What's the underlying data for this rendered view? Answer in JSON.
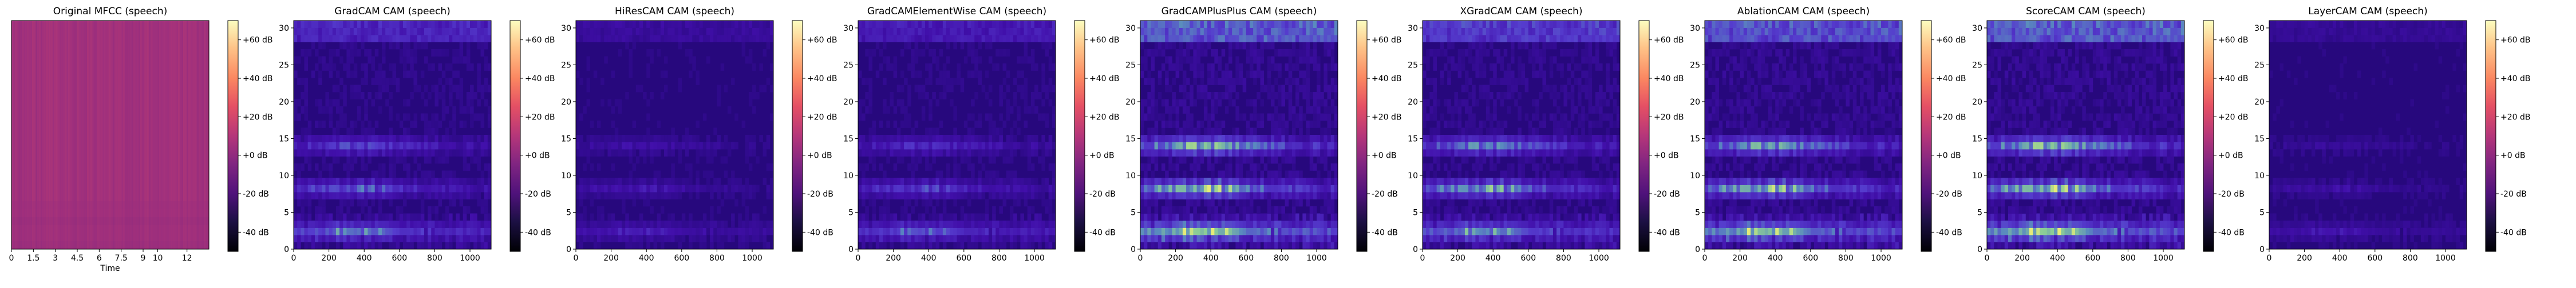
{
  "figure": {
    "background": "#ffffff"
  },
  "colorbar": {
    "ticks": [
      "+60 dB",
      "+40 dB",
      "+20 dB",
      "+0 dB",
      "-20 dB",
      "-40 dB"
    ],
    "range_db": [
      -50,
      70
    ],
    "colormap": "magma"
  },
  "chart_data": [
    {
      "type": "heatmap",
      "title": "Original MFCC (speech)",
      "xlabel": "Time",
      "ylabel": "",
      "x_ticks": [
        "0",
        "1.5",
        "3",
        "4.5",
        "6",
        "7.5",
        "9",
        "10",
        "12"
      ],
      "xlim": [
        0,
        13.5
      ],
      "y_ticks": [],
      "style": "mfcc",
      "band_rows": [],
      "band_strength": []
    },
    {
      "type": "heatmap",
      "title": "GradCAM CAM (speech)",
      "xlabel": "",
      "ylabel": "",
      "x_ticks": [
        "0",
        "200",
        "400",
        "600",
        "800",
        "1000"
      ],
      "xlim": [
        0,
        1120
      ],
      "y_ticks": [
        "0",
        "5",
        "10",
        "15",
        "20",
        "25",
        "30"
      ],
      "ylim": [
        0,
        31
      ],
      "style": "cam",
      "band_rows": [
        2,
        8,
        14
      ],
      "band_strength": [
        0.55,
        0.5,
        0.4
      ]
    },
    {
      "type": "heatmap",
      "title": "HiResCAM CAM (speech)",
      "xlabel": "",
      "ylabel": "",
      "x_ticks": [
        "0",
        "200",
        "400",
        "600",
        "800",
        "1000"
      ],
      "xlim": [
        0,
        1120
      ],
      "y_ticks": [
        "0",
        "5",
        "10",
        "15",
        "20",
        "25",
        "30"
      ],
      "ylim": [
        0,
        31
      ],
      "style": "cam",
      "band_rows": [
        2,
        8,
        14
      ],
      "band_strength": [
        0.22,
        0.2,
        0.15
      ]
    },
    {
      "type": "heatmap",
      "title": "GradCAMElementWise CAM (speech)",
      "xlabel": "",
      "ylabel": "",
      "x_ticks": [
        "0",
        "200",
        "400",
        "600",
        "800",
        "1000"
      ],
      "xlim": [
        0,
        1120
      ],
      "y_ticks": [
        "0",
        "5",
        "10",
        "15",
        "20",
        "25",
        "30"
      ],
      "ylim": [
        0,
        31
      ],
      "style": "cam",
      "band_rows": [
        2,
        8,
        14
      ],
      "band_strength": [
        0.45,
        0.4,
        0.3
      ]
    },
    {
      "type": "heatmap",
      "title": "GradCAMPlusPlus CAM (speech)",
      "xlabel": "",
      "ylabel": "",
      "x_ticks": [
        "0",
        "200",
        "400",
        "600",
        "800",
        "1000"
      ],
      "xlim": [
        0,
        1120
      ],
      "y_ticks": [
        "0",
        "5",
        "10",
        "15",
        "20",
        "25",
        "30"
      ],
      "ylim": [
        0,
        31
      ],
      "style": "cam",
      "band_rows": [
        2,
        8,
        14
      ],
      "band_strength": [
        0.85,
        0.9,
        0.8
      ]
    },
    {
      "type": "heatmap",
      "title": "XGradCAM CAM (speech)",
      "xlabel": "",
      "ylabel": "",
      "x_ticks": [
        "0",
        "200",
        "400",
        "600",
        "800",
        "1000"
      ],
      "xlim": [
        0,
        1120
      ],
      "y_ticks": [
        "0",
        "5",
        "10",
        "15",
        "20",
        "25",
        "30"
      ],
      "ylim": [
        0,
        31
      ],
      "style": "cam",
      "band_rows": [
        2,
        8,
        14
      ],
      "band_strength": [
        0.6,
        0.75,
        0.6
      ]
    },
    {
      "type": "heatmap",
      "title": "AblationCAM CAM (speech)",
      "xlabel": "",
      "ylabel": "",
      "x_ticks": [
        "0",
        "200",
        "400",
        "600",
        "800",
        "1000"
      ],
      "xlim": [
        0,
        1120
      ],
      "y_ticks": [
        "0",
        "5",
        "10",
        "15",
        "20",
        "25",
        "30"
      ],
      "ylim": [
        0,
        31
      ],
      "style": "cam",
      "band_rows": [
        2,
        8,
        14
      ],
      "band_strength": [
        0.8,
        0.85,
        0.7
      ]
    },
    {
      "type": "heatmap",
      "title": "ScoreCAM CAM (speech)",
      "xlabel": "",
      "ylabel": "",
      "x_ticks": [
        "0",
        "200",
        "400",
        "600",
        "800",
        "1000"
      ],
      "xlim": [
        0,
        1120
      ],
      "y_ticks": [
        "0",
        "5",
        "10",
        "15",
        "20",
        "25",
        "30"
      ],
      "ylim": [
        0,
        31
      ],
      "style": "cam",
      "band_rows": [
        2,
        8,
        14
      ],
      "band_strength": [
        0.85,
        0.9,
        0.8
      ]
    },
    {
      "type": "heatmap",
      "title": "LayerCAM CAM (speech)",
      "xlabel": "",
      "ylabel": "",
      "x_ticks": [
        "0",
        "200",
        "400",
        "600",
        "800",
        "1000"
      ],
      "xlim": [
        0,
        1120
      ],
      "y_ticks": [
        "0",
        "5",
        "10",
        "15",
        "20",
        "25",
        "30"
      ],
      "ylim": [
        0,
        31
      ],
      "style": "cam",
      "band_rows": [
        2,
        8,
        14
      ],
      "band_strength": [
        0.18,
        0.15,
        0.1
      ]
    }
  ]
}
